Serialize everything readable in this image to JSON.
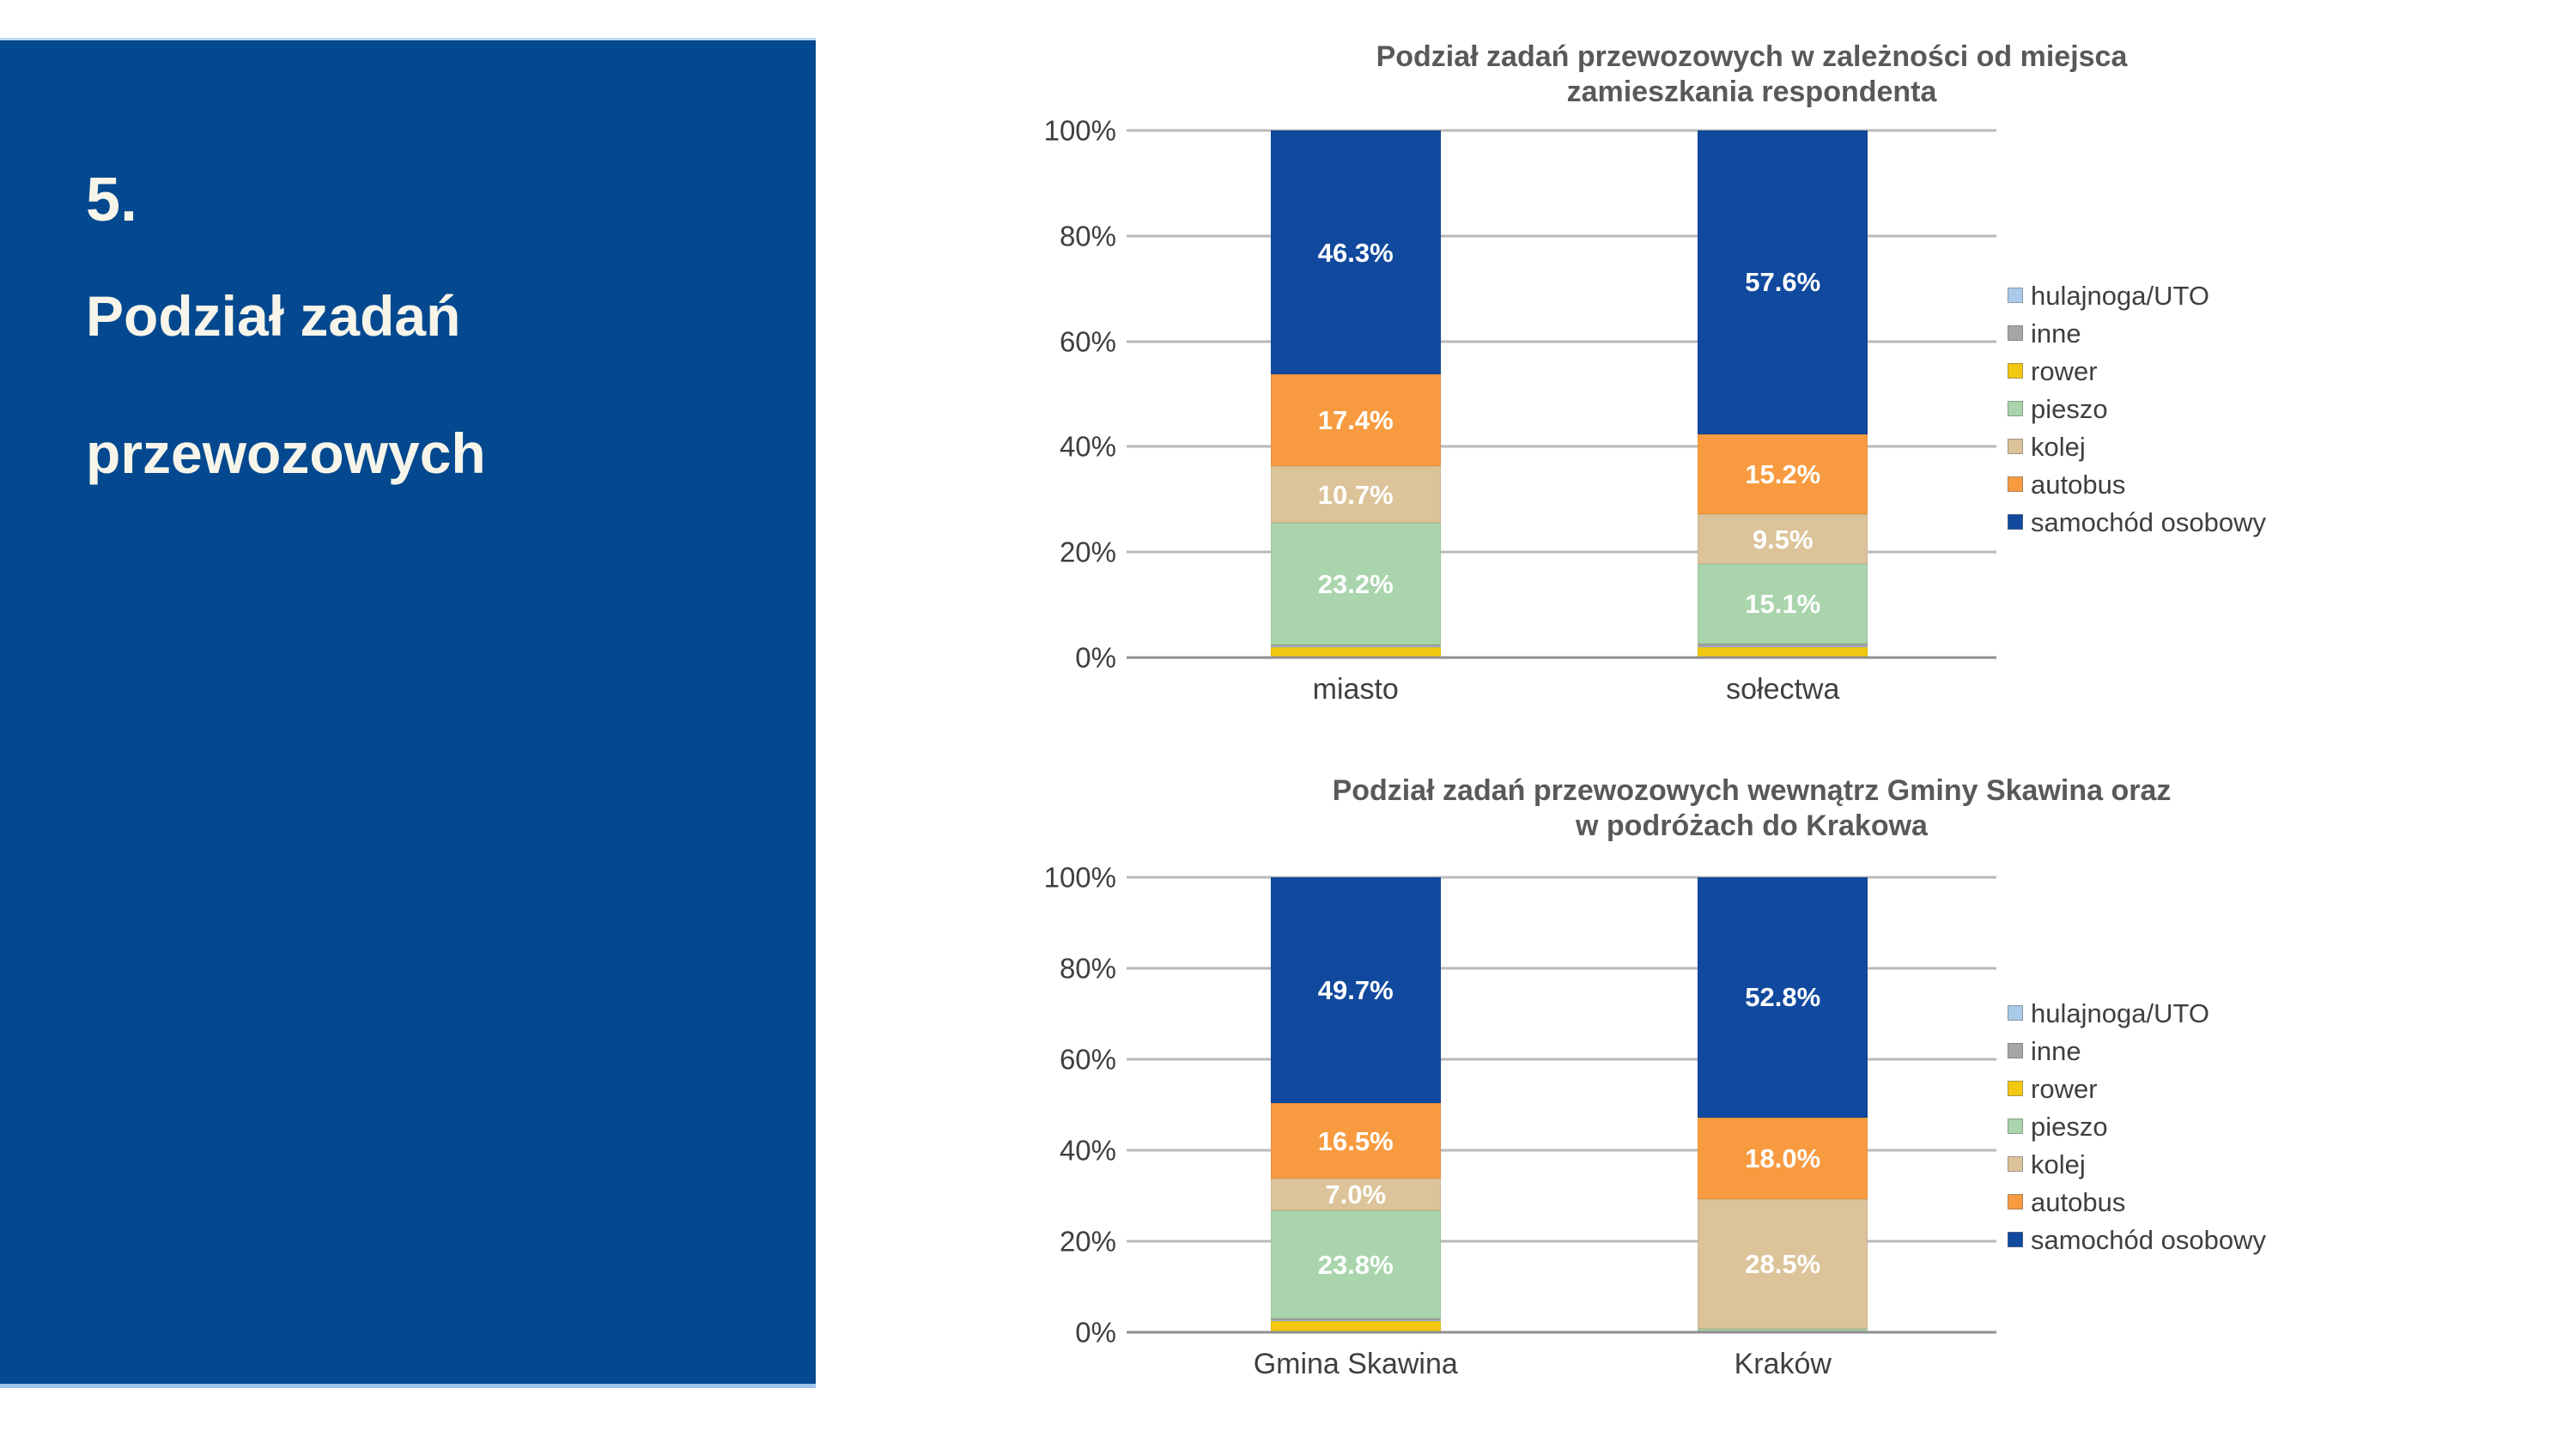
{
  "sidebar": {
    "number": "5.",
    "title_line1": "Podział zadań",
    "title_line2": "przewozowych",
    "bg_color": "#04498F",
    "accent_border_color": "#9DC3E6",
    "text_color": "#F7F5EA"
  },
  "series_colors": {
    "hulajnoga": "#A9CBE9",
    "inne": "#A6A6A6",
    "rower": "#F2C811",
    "pieszo": "#A9D4AC",
    "kolej": "#DCC399",
    "autobus": "#F89B40",
    "samochod": "#11499E"
  },
  "legend": [
    {
      "key": "hulajnoga",
      "label": "hulajnoga/UTO"
    },
    {
      "key": "inne",
      "label": "inne"
    },
    {
      "key": "rower",
      "label": "rower"
    },
    {
      "key": "pieszo",
      "label": "pieszo"
    },
    {
      "key": "kolej",
      "label": "kolej"
    },
    {
      "key": "autobus",
      "label": "autobus"
    },
    {
      "key": "samochod",
      "label": "samochód osobowy"
    }
  ],
  "chart_data": [
    {
      "type": "bar",
      "subtype": "stacked-100-percent",
      "title_lines": [
        "Podział zadań przewozowych w zależności od miejsca",
        "zamieszkania respondenta"
      ],
      "ylim": [
        0,
        100
      ],
      "grid": true,
      "legend_position": "right",
      "ticks": [
        {
          "v": 0,
          "label": "0%"
        },
        {
          "v": 20,
          "label": "20%"
        },
        {
          "v": 40,
          "label": "40%"
        },
        {
          "v": 60,
          "label": "60%"
        },
        {
          "v": 80,
          "label": "80%"
        },
        {
          "v": 100,
          "label": "100%"
        }
      ],
      "categories": [
        "miasto",
        "sołectwa"
      ],
      "bars": [
        {
          "category": "miasto",
          "segments": [
            {
              "key": "rower",
              "value": 2.0,
              "label": ""
            },
            {
              "key": "hulajnoga",
              "value": 0.1,
              "label": ""
            },
            {
              "key": "inne",
              "value": 0.3,
              "label": ""
            },
            {
              "key": "pieszo",
              "value": 23.2,
              "label": "23.2%"
            },
            {
              "key": "kolej",
              "value": 10.7,
              "label": "10.7%"
            },
            {
              "key": "autobus",
              "value": 17.4,
              "label": "17.4%"
            },
            {
              "key": "samochod",
              "value": 46.3,
              "label": "46.3%"
            }
          ]
        },
        {
          "category": "sołectwa",
          "segments": [
            {
              "key": "rower",
              "value": 2.0,
              "label": ""
            },
            {
              "key": "hulajnoga",
              "value": 0.2,
              "label": ""
            },
            {
              "key": "inne",
              "value": 0.4,
              "label": ""
            },
            {
              "key": "pieszo",
              "value": 15.1,
              "label": "15.1%"
            },
            {
              "key": "kolej",
              "value": 9.5,
              "label": "9.5%"
            },
            {
              "key": "autobus",
              "value": 15.2,
              "label": "15.2%"
            },
            {
              "key": "samochod",
              "value": 57.6,
              "label": "57.6%"
            }
          ]
        }
      ]
    },
    {
      "type": "bar",
      "subtype": "stacked-100-percent",
      "title_lines": [
        "Podział zadań przewozowych wewnątrz Gminy Skawina oraz",
        "w podróżach do Krakowa"
      ],
      "ylim": [
        0,
        100
      ],
      "grid": true,
      "legend_position": "right",
      "ticks": [
        {
          "v": 0,
          "label": "0%"
        },
        {
          "v": 20,
          "label": "20%"
        },
        {
          "v": 40,
          "label": "40%"
        },
        {
          "v": 60,
          "label": "60%"
        },
        {
          "v": 80,
          "label": "80%"
        },
        {
          "v": 100,
          "label": "100%"
        }
      ],
      "categories": [
        "Gmina Skawina",
        "Kraków"
      ],
      "bars": [
        {
          "category": "Gmina Skawina",
          "segments": [
            {
              "key": "rower",
              "value": 2.5,
              "label": ""
            },
            {
              "key": "hulajnoga",
              "value": 0.1,
              "label": ""
            },
            {
              "key": "inne",
              "value": 0.4,
              "label": ""
            },
            {
              "key": "pieszo",
              "value": 23.8,
              "label": "23.8%"
            },
            {
              "key": "kolej",
              "value": 7.0,
              "label": "7.0%"
            },
            {
              "key": "autobus",
              "value": 16.5,
              "label": "16.5%"
            },
            {
              "key": "samochod",
              "value": 49.7,
              "label": "49.7%"
            }
          ]
        },
        {
          "category": "Kraków",
          "segments": [
            {
              "key": "rower",
              "value": 0.1,
              "label": ""
            },
            {
              "key": "hulajnoga",
              "value": 0.0,
              "label": ""
            },
            {
              "key": "inne",
              "value": 0.0,
              "label": ""
            },
            {
              "key": "pieszo",
              "value": 0.6,
              "label": ""
            },
            {
              "key": "kolej",
              "value": 28.5,
              "label": "28.5%"
            },
            {
              "key": "autobus",
              "value": 18.0,
              "label": "18.0%"
            },
            {
              "key": "samochod",
              "value": 52.8,
              "label": "52.8%"
            }
          ]
        }
      ]
    }
  ]
}
